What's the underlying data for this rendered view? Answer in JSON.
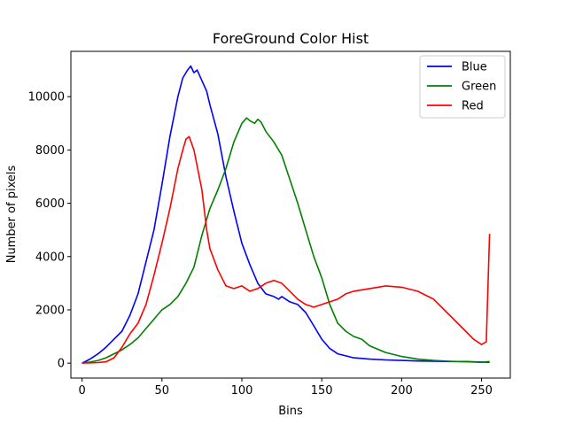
{
  "chart_data": {
    "type": "line",
    "title": "ForeGround Color Hist",
    "xlabel": "Bins",
    "ylabel": "Number of pixels",
    "xlim": [
      -7,
      268
    ],
    "ylim": [
      -560,
      11700
    ],
    "xticks": [
      0,
      50,
      100,
      150,
      200,
      250
    ],
    "yticks": [
      0,
      2000,
      4000,
      6000,
      8000,
      10000
    ],
    "grid": false,
    "legend_position": "top-right",
    "series": [
      {
        "name": "Blue",
        "color": "#0000ff",
        "x": [
          0,
          5,
          10,
          15,
          20,
          25,
          30,
          35,
          40,
          45,
          50,
          55,
          60,
          63,
          66,
          68,
          70,
          72,
          75,
          78,
          80,
          85,
          90,
          95,
          100,
          105,
          110,
          115,
          120,
          123,
          125,
          130,
          135,
          140,
          145,
          150,
          155,
          160,
          170,
          180,
          190,
          200,
          210,
          220,
          230,
          240,
          250,
          255
        ],
        "y": [
          0,
          150,
          350,
          600,
          900,
          1200,
          1800,
          2600,
          3800,
          5000,
          6700,
          8500,
          10000,
          10700,
          11000,
          11150,
          10900,
          11000,
          10600,
          10200,
          9700,
          8600,
          7000,
          5700,
          4500,
          3700,
          3000,
          2600,
          2500,
          2400,
          2500,
          2300,
          2200,
          1900,
          1400,
          900,
          550,
          350,
          200,
          150,
          120,
          100,
          80,
          70,
          60,
          60,
          40,
          30
        ]
      },
      {
        "name": "Green",
        "color": "#008000",
        "x": [
          0,
          5,
          10,
          15,
          20,
          25,
          30,
          35,
          40,
          45,
          50,
          55,
          60,
          65,
          70,
          75,
          80,
          85,
          90,
          95,
          100,
          103,
          105,
          108,
          110,
          112,
          115,
          120,
          125,
          130,
          135,
          140,
          145,
          150,
          155,
          160,
          165,
          170,
          175,
          180,
          190,
          200,
          210,
          220,
          230,
          240,
          250,
          255
        ],
        "y": [
          0,
          40,
          100,
          200,
          350,
          500,
          700,
          950,
          1300,
          1650,
          2000,
          2200,
          2500,
          3000,
          3600,
          4800,
          5800,
          6500,
          7300,
          8300,
          9000,
          9200,
          9100,
          9000,
          9150,
          9050,
          8700,
          8300,
          7800,
          6900,
          6000,
          5000,
          4000,
          3200,
          2200,
          1500,
          1200,
          1000,
          900,
          650,
          400,
          250,
          150,
          100,
          70,
          50,
          30,
          60
        ]
      },
      {
        "name": "Red",
        "color": "#ff0000",
        "x": [
          0,
          5,
          10,
          15,
          20,
          25,
          30,
          35,
          40,
          45,
          50,
          55,
          60,
          63,
          65,
          67,
          70,
          72,
          75,
          78,
          80,
          85,
          90,
          95,
          100,
          105,
          110,
          115,
          120,
          125,
          130,
          135,
          140,
          145,
          150,
          155,
          160,
          165,
          170,
          180,
          190,
          200,
          210,
          220,
          230,
          240,
          245,
          250,
          253,
          255
        ],
        "y": [
          0,
          10,
          20,
          50,
          200,
          600,
          1100,
          1500,
          2200,
          3300,
          4500,
          5800,
          7300,
          8000,
          8400,
          8500,
          8000,
          7400,
          6500,
          5000,
          4300,
          3500,
          2900,
          2800,
          2900,
          2700,
          2800,
          3000,
          3100,
          3000,
          2700,
          2400,
          2200,
          2100,
          2200,
          2300,
          2400,
          2600,
          2700,
          2800,
          2900,
          2850,
          2700,
          2400,
          1800,
          1200,
          900,
          700,
          800,
          4850
        ]
      }
    ]
  }
}
